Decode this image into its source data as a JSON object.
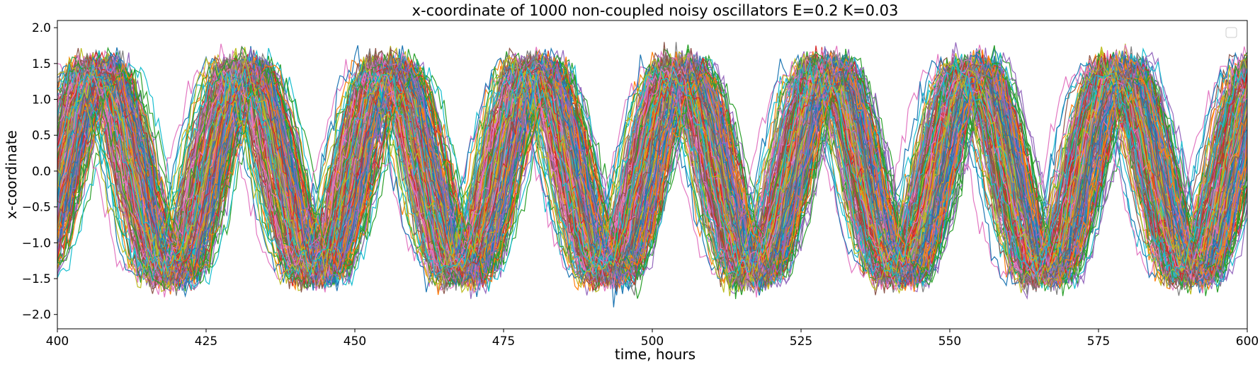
{
  "chart_data": {
    "type": "line",
    "title": "x-coordinate of 1000 non-coupled noisy oscillators E=0.2 K=0.03",
    "xlabel": "time, hours",
    "ylabel": "x-coordinate",
    "xlim": [
      400,
      600
    ],
    "ylim": [
      -2.2,
      2.1
    ],
    "xticks": [
      400,
      425,
      450,
      475,
      500,
      525,
      550,
      575,
      600
    ],
    "xtick_labels": [
      "400",
      "425",
      "450",
      "475",
      "500",
      "525",
      "550",
      "575",
      "600"
    ],
    "yticks": [
      2.0,
      1.5,
      1.0,
      0.5,
      0.0,
      -0.5,
      -1.0,
      -1.5,
      -2.0
    ],
    "ytick_labels": [
      "2.0",
      "1.5",
      "1.0",
      "0.5",
      "0.0",
      "−0.5",
      "−1.0",
      "−1.5",
      "−2.0"
    ],
    "grid": false,
    "legend_placement": "upper right (empty)",
    "oscillators": {
      "count": 1000,
      "period_hours": 24.5,
      "amplitude": 1.45,
      "noise_amplitude": 0.2,
      "envelope_range": [
        -1.9,
        1.8
      ]
    },
    "series_colors": [
      "#1f77b4",
      "#ff7f0e",
      "#2ca02c",
      "#d62728",
      "#9467bd",
      "#8c564b",
      "#e377c2",
      "#7f7f7f",
      "#bcbd22",
      "#17becf"
    ]
  }
}
